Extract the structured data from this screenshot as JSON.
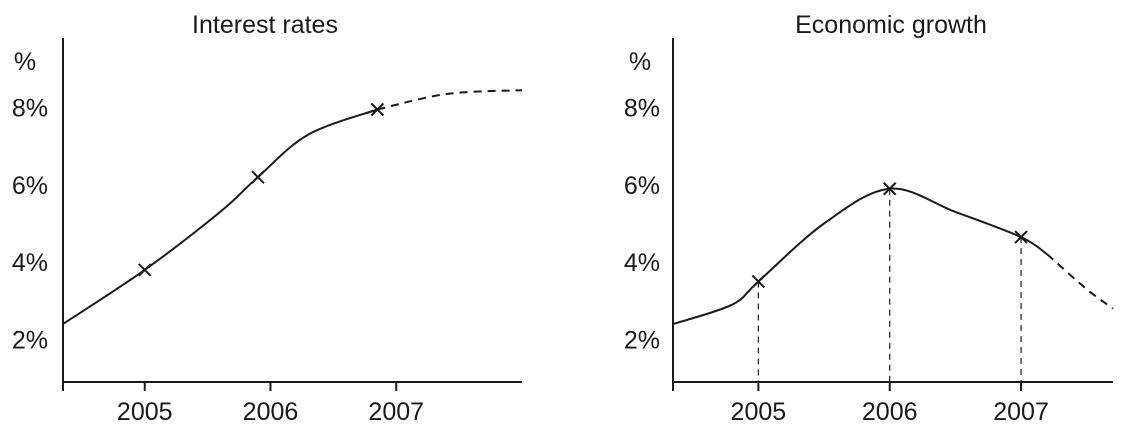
{
  "chart_data": [
    {
      "type": "line",
      "title": "Interest rates",
      "ylabel": "%",
      "xlabel": "",
      "x_ticks": [
        "2005",
        "2006",
        "2007"
      ],
      "y_ticks": [
        "2%",
        "4%",
        "6%",
        "8%"
      ],
      "xlim": [
        2004.35,
        2008.0
      ],
      "ylim": [
        0.9,
        9.8
      ],
      "drop_lines": false,
      "solid": [
        [
          2004.35,
          2.4
        ],
        [
          2005.0,
          3.8
        ],
        [
          2005.6,
          5.3
        ],
        [
          2005.9,
          6.2
        ],
        [
          2006.3,
          7.3
        ],
        [
          2006.85,
          7.95
        ]
      ],
      "dashed": [
        [
          2006.85,
          7.95
        ],
        [
          2007.4,
          8.35
        ],
        [
          2008.0,
          8.45
        ]
      ],
      "markers": [
        [
          2005.0,
          3.8
        ],
        [
          2005.9,
          6.2
        ],
        [
          2006.85,
          7.95
        ]
      ]
    },
    {
      "type": "line",
      "title": "Economic growth",
      "ylabel": "%",
      "xlabel": "",
      "x_ticks": [
        "2005",
        "2006",
        "2007"
      ],
      "y_ticks": [
        "2%",
        "4%",
        "6%",
        "8%"
      ],
      "xlim": [
        2004.35,
        2007.7
      ],
      "ylim": [
        0.9,
        9.8
      ],
      "drop_lines": true,
      "solid": [
        [
          2004.35,
          2.4
        ],
        [
          2004.8,
          2.9
        ],
        [
          2005.0,
          3.5
        ],
        [
          2005.5,
          5.0
        ],
        [
          2006.0,
          5.9
        ],
        [
          2006.5,
          5.3
        ],
        [
          2007.0,
          4.65
        ],
        [
          2007.2,
          4.2
        ]
      ],
      "dashed": [
        [
          2007.2,
          4.2
        ],
        [
          2007.5,
          3.3
        ],
        [
          2007.7,
          2.8
        ]
      ],
      "markers": [
        [
          2005.0,
          3.5
        ],
        [
          2006.0,
          5.9
        ],
        [
          2007.0,
          4.65
        ]
      ]
    }
  ]
}
